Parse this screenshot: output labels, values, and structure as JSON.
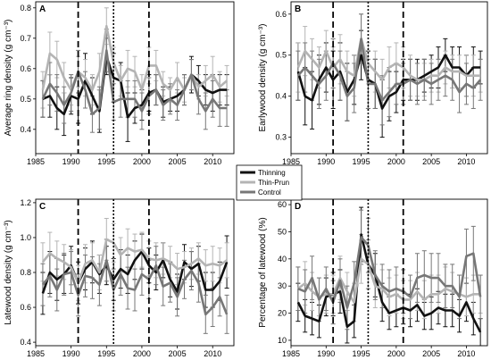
{
  "figure": {
    "legend": [
      "Thinning",
      "Thin-Prun",
      "Control"
    ]
  },
  "series_colors": {
    "Thinning": "#111111",
    "Thin-Prun": "#b4b4b4",
    "Control": "#777777"
  },
  "chart_data": [
    {
      "type": "line",
      "panel": "A",
      "ylabel": "Average ring density (g cm⁻³)",
      "xlim": [
        1985,
        2013
      ],
      "ylim": [
        0.32,
        0.82
      ],
      "xticks": [
        1985,
        1990,
        1995,
        2000,
        2005,
        2010
      ],
      "yticks": [
        0.4,
        0.5,
        0.6,
        0.7,
        0.8
      ],
      "vlines": [
        {
          "x": 1991,
          "style": "dashed"
        },
        {
          "x": 1996,
          "style": "dotted"
        },
        {
          "x": 2001,
          "style": "dashed"
        }
      ],
      "x": [
        1986,
        1987,
        1988,
        1989,
        1990,
        1991,
        1992,
        1993,
        1994,
        1995,
        1996,
        1997,
        1998,
        1999,
        2000,
        2001,
        2002,
        2003,
        2004,
        2005,
        2006,
        2007,
        2008,
        2009,
        2010,
        2011,
        2012
      ],
      "series": [
        {
          "name": "Thinning",
          "values": [
            0.5,
            0.51,
            0.47,
            0.45,
            0.51,
            0.5,
            0.56,
            0.51,
            0.46,
            0.64,
            0.57,
            0.56,
            0.44,
            0.47,
            0.48,
            0.52,
            0.53,
            0.49,
            0.5,
            0.51,
            0.53,
            0.58,
            0.56,
            0.53,
            0.52,
            0.53,
            0.53
          ],
          "err": [
            0.06,
            0.07,
            0.07,
            0.07,
            0.06,
            0.08,
            0.09,
            0.06,
            0.07,
            0.06,
            0.08,
            0.06,
            0.08,
            0.05,
            0.05,
            0.06,
            0.05,
            0.05,
            0.04,
            0.05,
            0.05,
            0.06,
            0.05,
            0.05,
            0.06,
            0.05,
            0.05
          ]
        },
        {
          "name": "Thin-Prun",
          "values": [
            0.53,
            0.65,
            0.63,
            0.57,
            0.53,
            0.59,
            0.57,
            0.53,
            0.59,
            0.74,
            0.62,
            0.56,
            0.6,
            0.59,
            0.53,
            0.61,
            0.61,
            0.55,
            0.53,
            0.57,
            0.53,
            0.58,
            0.54,
            0.56,
            0.58,
            0.54,
            0.56
          ],
          "err": [
            0.06,
            0.07,
            0.06,
            0.05,
            0.05,
            0.05,
            0.06,
            0.05,
            0.06,
            0.06,
            0.05,
            0.05,
            0.06,
            0.05,
            0.05,
            0.06,
            0.05,
            0.04,
            0.04,
            0.05,
            0.04,
            0.05,
            0.04,
            0.05,
            0.06,
            0.05,
            0.05
          ]
        },
        {
          "name": "Control",
          "values": [
            0.5,
            0.55,
            0.52,
            0.48,
            0.52,
            0.59,
            0.53,
            0.45,
            0.47,
            0.66,
            0.49,
            0.5,
            0.5,
            0.5,
            0.46,
            0.51,
            0.53,
            0.48,
            0.5,
            0.48,
            0.53,
            0.58,
            0.5,
            0.46,
            0.5,
            0.47,
            0.47
          ],
          "err": [
            0.06,
            0.07,
            0.06,
            0.06,
            0.06,
            0.07,
            0.06,
            0.06,
            0.07,
            0.07,
            0.06,
            0.06,
            0.06,
            0.06,
            0.06,
            0.06,
            0.05,
            0.05,
            0.05,
            0.05,
            0.05,
            0.05,
            0.05,
            0.06,
            0.06,
            0.06,
            0.06
          ]
        }
      ]
    },
    {
      "type": "line",
      "panel": "B",
      "ylabel": "Earlywood density (g cm⁻³)",
      "xlim": [
        1985,
        2013
      ],
      "ylim": [
        0.26,
        0.63
      ],
      "xticks": [
        1985,
        1990,
        1995,
        2000,
        2005,
        2010
      ],
      "yticks": [
        0.3,
        0.4,
        0.5,
        0.6
      ],
      "vlines": [
        {
          "x": 1991,
          "style": "dashed"
        },
        {
          "x": 1996,
          "style": "dotted"
        },
        {
          "x": 2001,
          "style": "dashed"
        }
      ],
      "x": [
        1986,
        1987,
        1988,
        1989,
        1990,
        1991,
        1992,
        1993,
        1994,
        1995,
        1996,
        1997,
        1998,
        1999,
        2000,
        2001,
        2002,
        2003,
        2004,
        2005,
        2006,
        2007,
        2008,
        2009,
        2010,
        2011,
        2012
      ],
      "series": [
        {
          "name": "Thinning",
          "values": [
            0.46,
            0.4,
            0.39,
            0.44,
            0.47,
            0.44,
            0.46,
            0.41,
            0.44,
            0.5,
            0.44,
            0.43,
            0.37,
            0.4,
            0.41,
            0.44,
            0.44,
            0.44,
            0.45,
            0.46,
            0.47,
            0.5,
            0.47,
            0.47,
            0.45,
            0.47,
            0.47
          ],
          "err": [
            0.07,
            0.07,
            0.07,
            0.06,
            0.06,
            0.07,
            0.07,
            0.07,
            0.06,
            0.06,
            0.07,
            0.06,
            0.07,
            0.06,
            0.05,
            0.05,
            0.05,
            0.05,
            0.04,
            0.04,
            0.05,
            0.04,
            0.05,
            0.05,
            0.05,
            0.05,
            0.04
          ]
        },
        {
          "name": "Thin-Prun",
          "values": [
            0.47,
            0.51,
            0.49,
            0.47,
            0.51,
            0.47,
            0.49,
            0.46,
            0.45,
            0.54,
            0.48,
            0.46,
            0.44,
            0.47,
            0.48,
            0.47,
            0.45,
            0.44,
            0.44,
            0.45,
            0.45,
            0.47,
            0.46,
            0.46,
            0.45,
            0.45,
            0.45
          ],
          "err": [
            0.06,
            0.06,
            0.05,
            0.05,
            0.05,
            0.05,
            0.06,
            0.05,
            0.05,
            0.06,
            0.05,
            0.05,
            0.05,
            0.05,
            0.05,
            0.05,
            0.05,
            0.04,
            0.04,
            0.04,
            0.04,
            0.04,
            0.04,
            0.04,
            0.05,
            0.05,
            0.04
          ]
        },
        {
          "name": "Control",
          "values": [
            0.45,
            0.47,
            0.45,
            0.43,
            0.45,
            0.48,
            0.45,
            0.4,
            0.42,
            0.54,
            0.43,
            0.43,
            0.39,
            0.41,
            0.43,
            0.43,
            0.44,
            0.43,
            0.44,
            0.43,
            0.44,
            0.45,
            0.44,
            0.41,
            0.43,
            0.42,
            0.44
          ],
          "err": [
            0.06,
            0.06,
            0.06,
            0.06,
            0.06,
            0.06,
            0.06,
            0.06,
            0.06,
            0.06,
            0.06,
            0.06,
            0.06,
            0.06,
            0.05,
            0.05,
            0.05,
            0.05,
            0.05,
            0.05,
            0.05,
            0.05,
            0.05,
            0.05,
            0.05,
            0.05,
            0.05
          ]
        }
      ]
    },
    {
      "type": "line",
      "panel": "C",
      "ylabel": "Latewood density (g cm⁻³)",
      "xlim": [
        1985,
        2013
      ],
      "ylim": [
        0.38,
        1.22
      ],
      "xticks": [
        1985,
        1990,
        1995,
        2000,
        2005,
        2010
      ],
      "yticks": [
        0.4,
        0.6,
        0.8,
        1.0,
        1.2
      ],
      "vlines": [
        {
          "x": 1991,
          "style": "dashed"
        },
        {
          "x": 1996,
          "style": "dotted"
        },
        {
          "x": 2001,
          "style": "dashed"
        }
      ],
      "x": [
        1986,
        1987,
        1988,
        1989,
        1990,
        1991,
        1992,
        1993,
        1994,
        1995,
        1996,
        1997,
        1998,
        1999,
        2000,
        2001,
        2002,
        2003,
        2004,
        2005,
        2006,
        2007,
        2008,
        2009,
        2010,
        2011,
        2012
      ],
      "series": [
        {
          "name": "Thinning",
          "values": [
            0.68,
            0.8,
            0.76,
            0.79,
            0.84,
            0.74,
            0.82,
            0.86,
            0.79,
            0.84,
            0.76,
            0.82,
            0.79,
            0.87,
            0.92,
            0.84,
            0.8,
            0.87,
            0.76,
            0.69,
            0.86,
            0.82,
            0.85,
            0.7,
            0.7,
            0.75,
            0.86
          ],
          "err": [
            0.12,
            0.12,
            0.12,
            0.11,
            0.11,
            0.12,
            0.12,
            0.12,
            0.11,
            0.11,
            0.12,
            0.11,
            0.11,
            0.11,
            0.1,
            0.1,
            0.1,
            0.1,
            0.1,
            0.1,
            0.1,
            0.1,
            0.1,
            0.1,
            0.1,
            0.11,
            0.15
          ]
        },
        {
          "name": "Thin-Prun",
          "values": [
            0.86,
            0.91,
            0.88,
            0.86,
            0.83,
            0.74,
            0.85,
            0.87,
            0.8,
            0.99,
            0.97,
            0.9,
            0.94,
            0.92,
            0.93,
            0.88,
            0.87,
            0.88,
            0.86,
            0.82,
            0.83,
            0.85,
            0.88,
            0.84,
            0.85,
            0.84,
            0.87
          ],
          "err": [
            0.11,
            0.12,
            0.1,
            0.1,
            0.1,
            0.1,
            0.11,
            0.1,
            0.1,
            0.12,
            0.11,
            0.1,
            0.11,
            0.1,
            0.1,
            0.1,
            0.1,
            0.09,
            0.09,
            0.09,
            0.09,
            0.09,
            0.09,
            0.09,
            0.1,
            0.1,
            0.1
          ]
        },
        {
          "name": "Control",
          "values": [
            0.73,
            0.78,
            0.7,
            0.79,
            0.8,
            0.67,
            0.78,
            0.77,
            0.73,
            0.87,
            0.7,
            0.79,
            0.71,
            0.7,
            0.79,
            0.76,
            0.84,
            0.72,
            0.74,
            0.66,
            0.76,
            0.81,
            0.74,
            0.56,
            0.6,
            0.66,
            0.56
          ],
          "err": [
            0.12,
            0.12,
            0.12,
            0.12,
            0.12,
            0.12,
            0.12,
            0.12,
            0.12,
            0.12,
            0.12,
            0.12,
            0.12,
            0.12,
            0.12,
            0.11,
            0.11,
            0.11,
            0.11,
            0.11,
            0.11,
            0.11,
            0.11,
            0.11,
            0.11,
            0.11,
            0.11
          ]
        }
      ]
    },
    {
      "type": "line",
      "panel": "D",
      "ylabel": "Percentage of latewood (%)",
      "xlim": [
        1985,
        2013
      ],
      "ylim": [
        8,
        62
      ],
      "xticks": [
        1985,
        1990,
        1995,
        2000,
        2005,
        2010
      ],
      "yticks": [
        10,
        20,
        30,
        40,
        50,
        60
      ],
      "vlines": [
        {
          "x": 1991,
          "style": "dashed"
        },
        {
          "x": 1996,
          "style": "dotted"
        },
        {
          "x": 2001,
          "style": "dashed"
        }
      ],
      "x": [
        1986,
        1987,
        1988,
        1989,
        1990,
        1991,
        1992,
        1993,
        1994,
        1995,
        1996,
        1997,
        1998,
        1999,
        2000,
        2001,
        2002,
        2003,
        2004,
        2005,
        2006,
        2007,
        2008,
        2009,
        2010,
        2011,
        2012
      ],
      "series": [
        {
          "name": "Thinning",
          "values": [
            24,
            19,
            18,
            17,
            26,
            27,
            28,
            15,
            17,
            49,
            38,
            34,
            24,
            20,
            21,
            22,
            21,
            23,
            19,
            20,
            22,
            21,
            21,
            19,
            24,
            18,
            13
          ],
          "err": [
            7,
            6,
            6,
            6,
            7,
            8,
            8,
            6,
            6,
            10,
            9,
            8,
            7,
            6,
            6,
            6,
            6,
            6,
            5,
            6,
            6,
            6,
            6,
            6,
            7,
            6,
            5
          ]
        },
        {
          "name": "Thin-Prun",
          "values": [
            29,
            31,
            28,
            26,
            27,
            27,
            33,
            28,
            24,
            40,
            38,
            30,
            29,
            26,
            27,
            25,
            25,
            28,
            25,
            27,
            27,
            29,
            28,
            27,
            26,
            27,
            27
          ],
          "err": [
            8,
            8,
            7,
            7,
            7,
            7,
            8,
            7,
            7,
            9,
            9,
            8,
            7,
            7,
            7,
            7,
            7,
            7,
            7,
            7,
            7,
            8,
            7,
            7,
            7,
            7,
            7
          ]
        },
        {
          "name": "Control",
          "values": [
            29,
            28,
            33,
            25,
            29,
            24,
            32,
            22,
            31,
            48,
            45,
            34,
            30,
            28,
            29,
            28,
            26,
            33,
            34,
            33,
            33,
            30,
            30,
            26,
            41,
            42,
            26
          ],
          "err": [
            8,
            8,
            8,
            8,
            8,
            8,
            8,
            8,
            8,
            10,
            10,
            9,
            8,
            8,
            8,
            8,
            8,
            9,
            9,
            9,
            9,
            8,
            8,
            8,
            10,
            10,
            8
          ]
        }
      ]
    }
  ]
}
